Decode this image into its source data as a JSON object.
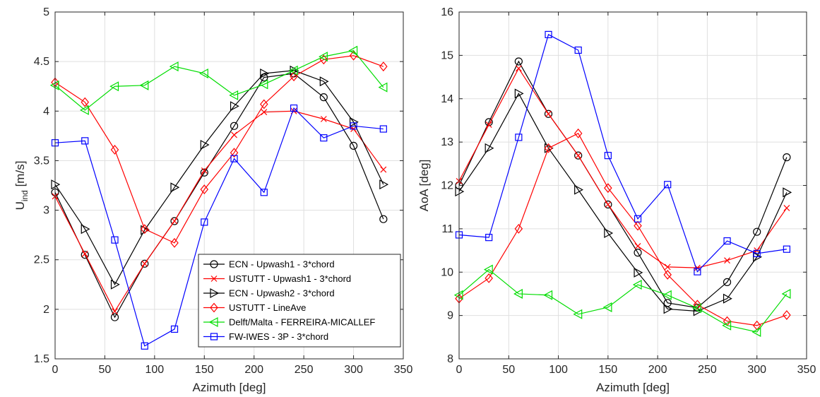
{
  "chart_data": [
    {
      "type": "line",
      "xlabel": "Azimuth [deg]",
      "ylabel_main": "U",
      "ylabel_sub": "ind",
      "ylabel_suffix": " [m/s]",
      "xlim": [
        0,
        350
      ],
      "ylim": [
        1.5,
        5
      ],
      "xticks": [
        0,
        50,
        100,
        150,
        200,
        250,
        300,
        350
      ],
      "yticks": [
        1.5,
        2,
        2.5,
        3,
        3.5,
        4,
        4.5,
        5
      ],
      "grid": true,
      "legend_position": "lower-right",
      "x": [
        0,
        30,
        60,
        90,
        120,
        150,
        180,
        210,
        240,
        270,
        300,
        330
      ],
      "series": [
        {
          "name": "ECN - Upwash1 - 3*chord",
          "color": "#000000",
          "marker": "circle",
          "values": [
            3.18,
            2.55,
            1.92,
            2.46,
            2.89,
            3.38,
            3.85,
            4.34,
            4.38,
            4.14,
            3.65,
            2.91
          ]
        },
        {
          "name": "USTUTT - Upwash1 - 3*chord",
          "color": "#ff0000",
          "marker": "x",
          "values": [
            3.14,
            2.56,
            1.98,
            2.46,
            2.89,
            3.4,
            3.76,
            3.99,
            4.0,
            3.92,
            3.82,
            3.41
          ]
        },
        {
          "name": "ECN - Upwash2 - 3*chord",
          "color": "#000000",
          "marker": "triangle-right",
          "values": [
            3.26,
            2.81,
            2.25,
            2.8,
            3.23,
            3.66,
            4.05,
            4.38,
            4.41,
            4.3,
            3.89,
            3.26
          ]
        },
        {
          "name": "USTUTT - LineAve",
          "color": "#ff0000",
          "marker": "diamond",
          "values": [
            4.29,
            4.09,
            3.61,
            2.81,
            2.67,
            3.21,
            3.58,
            4.07,
            4.35,
            4.52,
            4.56,
            4.45
          ]
        },
        {
          "name": "Delft/Malta - FERREIRA-MICALLEF",
          "color": "#00dd00",
          "marker": "triangle-left",
          "values": [
            4.26,
            4.01,
            4.25,
            4.26,
            4.45,
            4.38,
            4.16,
            4.27,
            4.41,
            4.55,
            4.61,
            4.24
          ]
        },
        {
          "name": "FW-IWES - 3P - 3*chord",
          "color": "#0000ff",
          "marker": "square",
          "values": [
            3.68,
            3.7,
            2.7,
            1.63,
            1.8,
            2.88,
            3.52,
            3.18,
            4.03,
            3.73,
            3.85,
            3.82
          ]
        }
      ]
    },
    {
      "type": "line",
      "xlabel": "Azimuth [deg]",
      "ylabel": "AoA [deg]",
      "xlim": [
        0,
        350
      ],
      "ylim": [
        8,
        16
      ],
      "xticks": [
        0,
        50,
        100,
        150,
        200,
        250,
        300,
        350
      ],
      "yticks": [
        8,
        9,
        10,
        11,
        12,
        13,
        14,
        15,
        16
      ],
      "grid": true,
      "x": [
        0,
        30,
        60,
        90,
        120,
        150,
        180,
        210,
        240,
        270,
        300,
        330
      ],
      "series": [
        {
          "color": "#000000",
          "marker": "circle",
          "values": [
            12.0,
            13.46,
            14.86,
            13.65,
            12.69,
            11.56,
            10.45,
            9.29,
            9.18,
            9.77,
            10.93,
            12.65
          ]
        },
        {
          "color": "#ff0000",
          "marker": "x",
          "values": [
            12.1,
            13.4,
            14.7,
            13.65,
            12.69,
            11.56,
            10.6,
            10.12,
            10.1,
            10.27,
            10.5,
            11.48
          ]
        },
        {
          "color": "#000000",
          "marker": "triangle-right",
          "values": [
            11.86,
            12.86,
            14.12,
            12.86,
            11.9,
            10.9,
            9.99,
            9.15,
            9.1,
            9.39,
            10.35,
            11.84
          ]
        },
        {
          "color": "#ff0000",
          "marker": "diamond",
          "values": [
            9.39,
            9.86,
            11.0,
            12.86,
            13.2,
            11.94,
            11.07,
            9.94,
            9.25,
            8.87,
            8.77,
            9.01
          ]
        },
        {
          "color": "#00dd00",
          "marker": "triangle-left",
          "values": [
            9.47,
            10.06,
            9.5,
            9.47,
            9.03,
            9.19,
            9.71,
            9.47,
            9.17,
            8.77,
            8.62,
            9.5
          ]
        },
        {
          "color": "#0000ff",
          "marker": "square",
          "values": [
            10.86,
            10.8,
            13.11,
            15.48,
            15.12,
            12.69,
            11.23,
            12.02,
            10.01,
            10.72,
            10.43,
            10.53
          ]
        }
      ]
    }
  ]
}
